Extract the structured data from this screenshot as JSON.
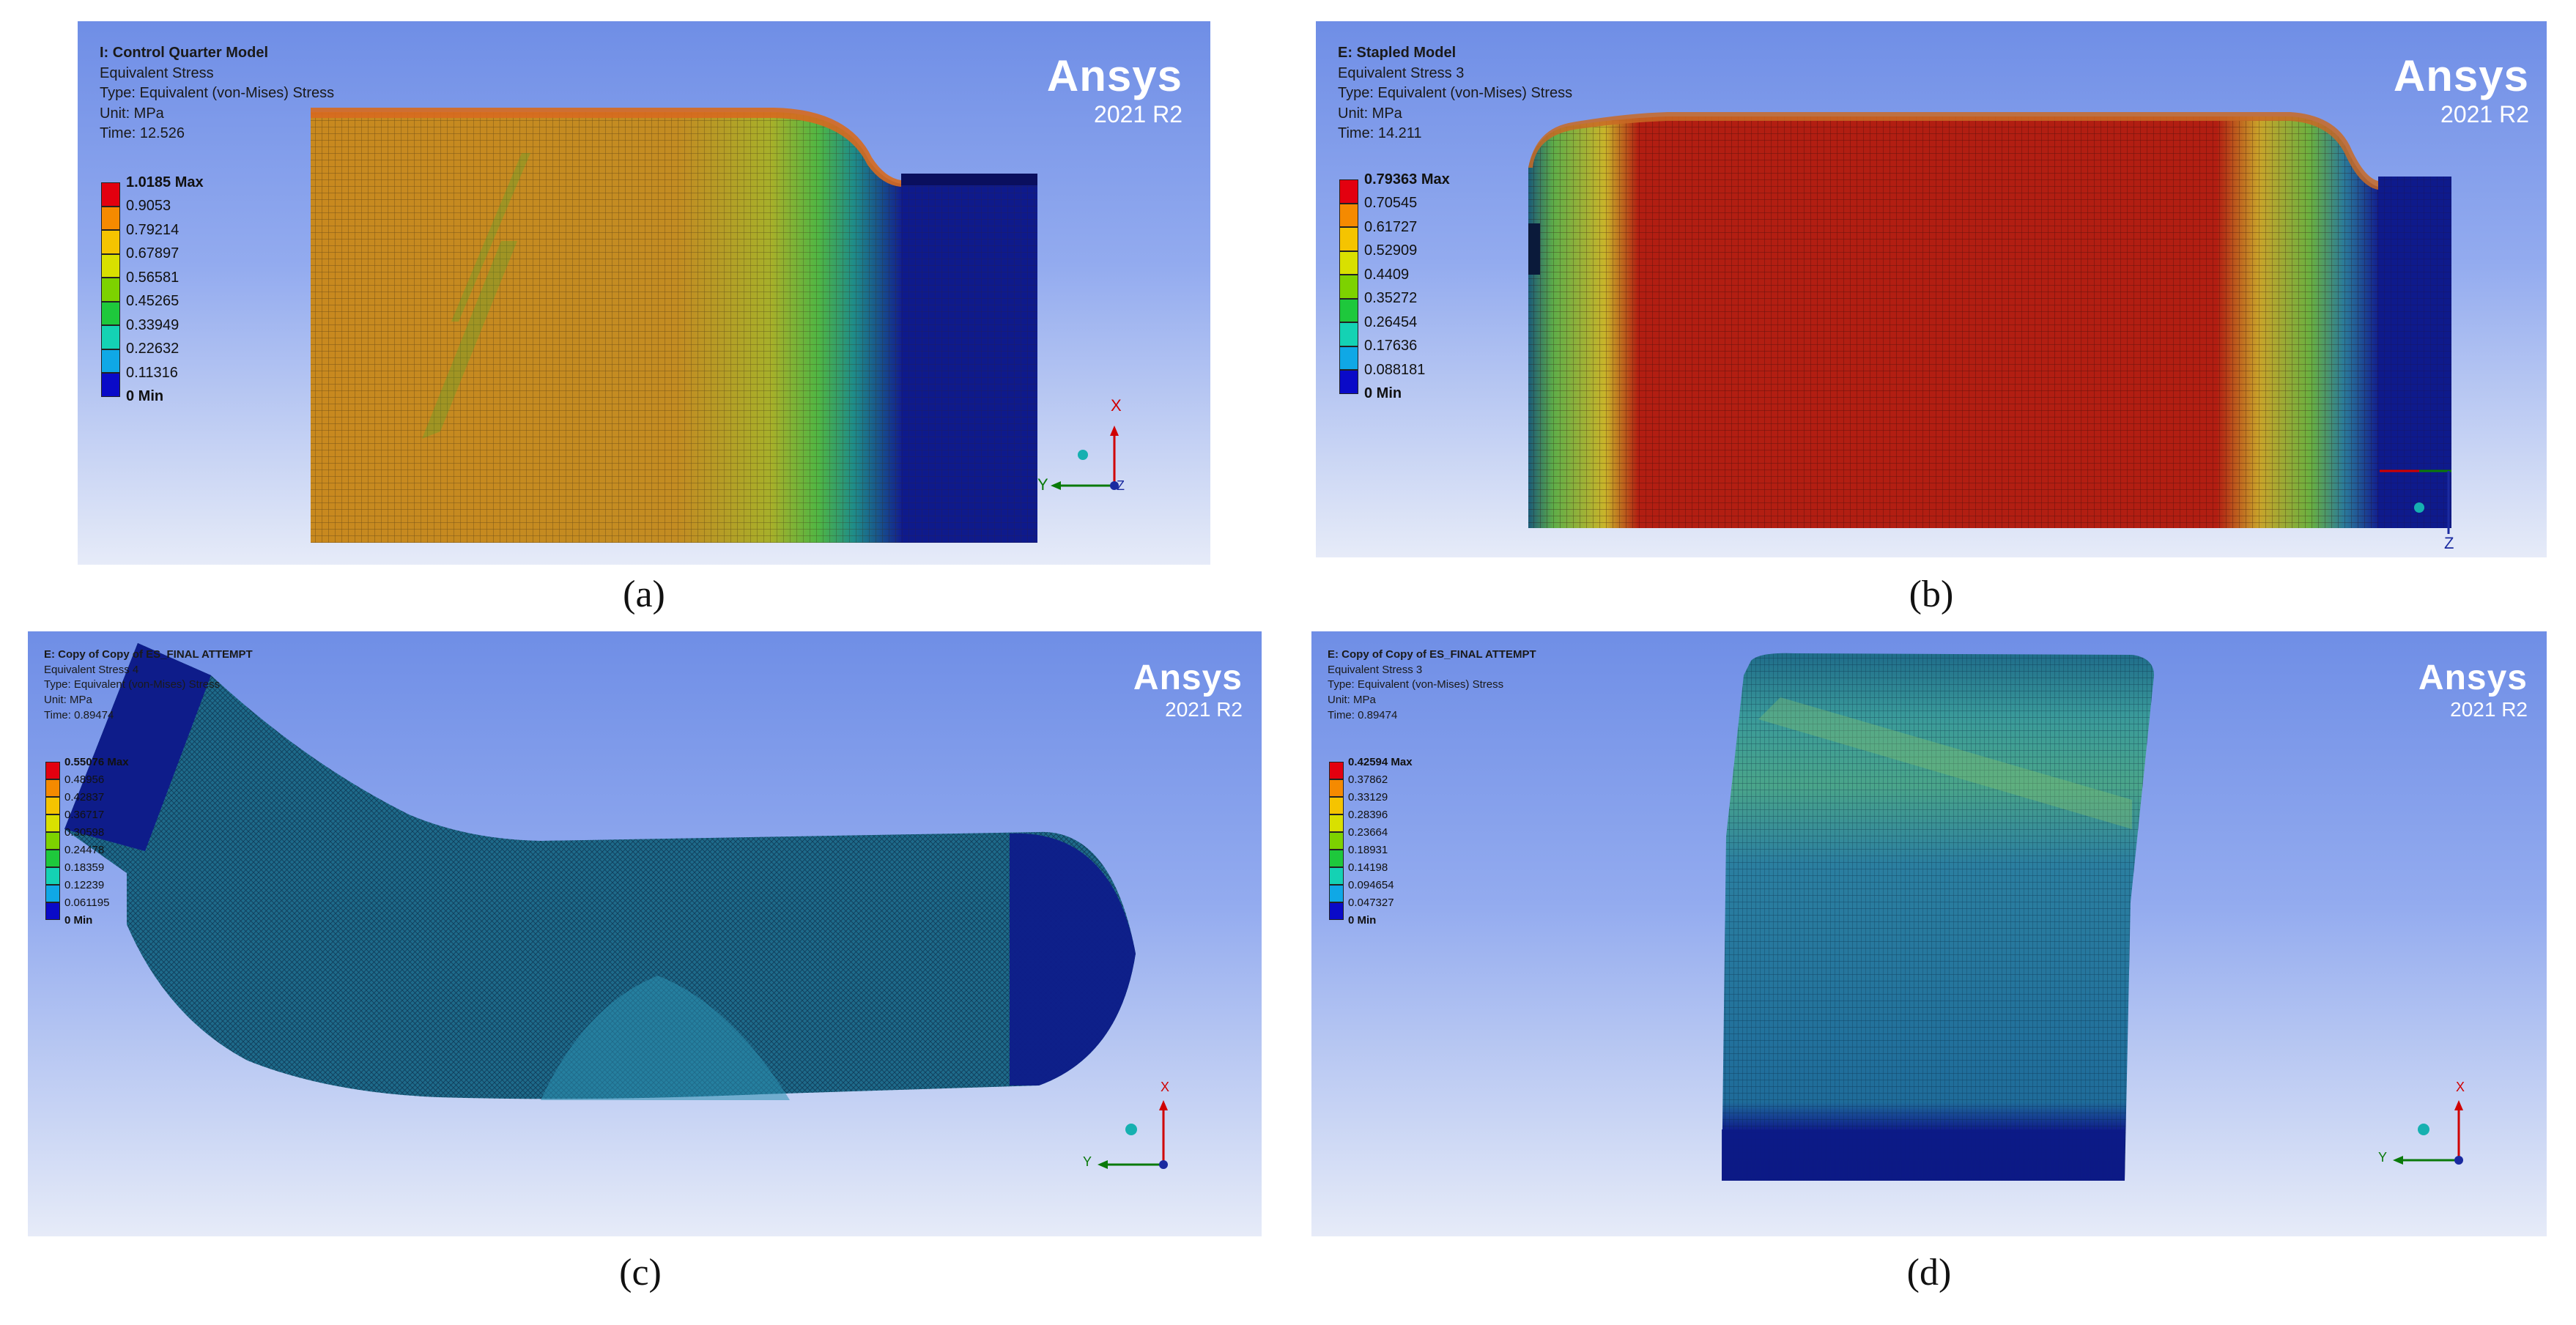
{
  "panels": {
    "a": {
      "caption": "(a)",
      "title": "I: Control Quarter Model",
      "result": "Equivalent Stress",
      "type": "Type: Equivalent (von-Mises) Stress",
      "unit": "Unit: MPa",
      "time": "Time: 12.526",
      "brand": "Ansys",
      "version": "2021 R2",
      "legend": [
        "1.0185 Max",
        "0.9053",
        "0.79214",
        "0.67897",
        "0.56581",
        "0.45265",
        "0.33949",
        "0.22632",
        "0.11316",
        "0 Min"
      ],
      "axes": {
        "x": "X",
        "y": "Y",
        "z": "Z"
      }
    },
    "b": {
      "caption": "(b)",
      "title": "E: Stapled Model",
      "result": "Equivalent Stress 3",
      "type": "Type: Equivalent (von-Mises) Stress",
      "unit": "Unit: MPa",
      "time": "Time: 14.211",
      "brand": "Ansys",
      "version": "2021 R2",
      "legend": [
        "0.79363 Max",
        "0.70545",
        "0.61727",
        "0.52909",
        "0.4409",
        "0.35272",
        "0.26454",
        "0.17636",
        "0.088181",
        "0 Min"
      ],
      "axes": {
        "z": "Z"
      }
    },
    "c": {
      "caption": "(c)",
      "title": "E: Copy of Copy of ES_FINAL ATTEMPT",
      "result": "Equivalent Stress 4",
      "type": "Type: Equivalent (von-Mises) Stress",
      "unit": "Unit: MPa",
      "time": "Time: 0.89474",
      "brand": "Ansys",
      "version": "2021 R2",
      "legend": [
        "0.55076 Max",
        "0.48956",
        "0.42837",
        "0.36717",
        "0.30598",
        "0.24478",
        "0.18359",
        "0.12239",
        "0.061195",
        "0 Min"
      ],
      "axes": {
        "x": "X",
        "y": "Y"
      }
    },
    "d": {
      "caption": "(d)",
      "title": "E: Copy of Copy of ES_FINAL ATTEMPT",
      "result": "Equivalent Stress 3",
      "type": "Type: Equivalent (von-Mises) Stress",
      "unit": "Unit: MPa",
      "time": "Time: 0.89474",
      "brand": "Ansys",
      "version": "2021 R2",
      "legend": [
        "0.42594 Max",
        "0.37862",
        "0.33129",
        "0.28396",
        "0.23664",
        "0.18931",
        "0.14198",
        "0.094654",
        "0.047327",
        "0 Min"
      ],
      "axes": {
        "x": "X",
        "y": "Y"
      }
    }
  },
  "legend_colors": [
    "#e3000f",
    "#f58a00",
    "#f5c400",
    "#d9e000",
    "#7dd200",
    "#1ec83c",
    "#14d2b4",
    "#0fa8e6",
    "#0f55e6",
    "#0a0ac8"
  ]
}
